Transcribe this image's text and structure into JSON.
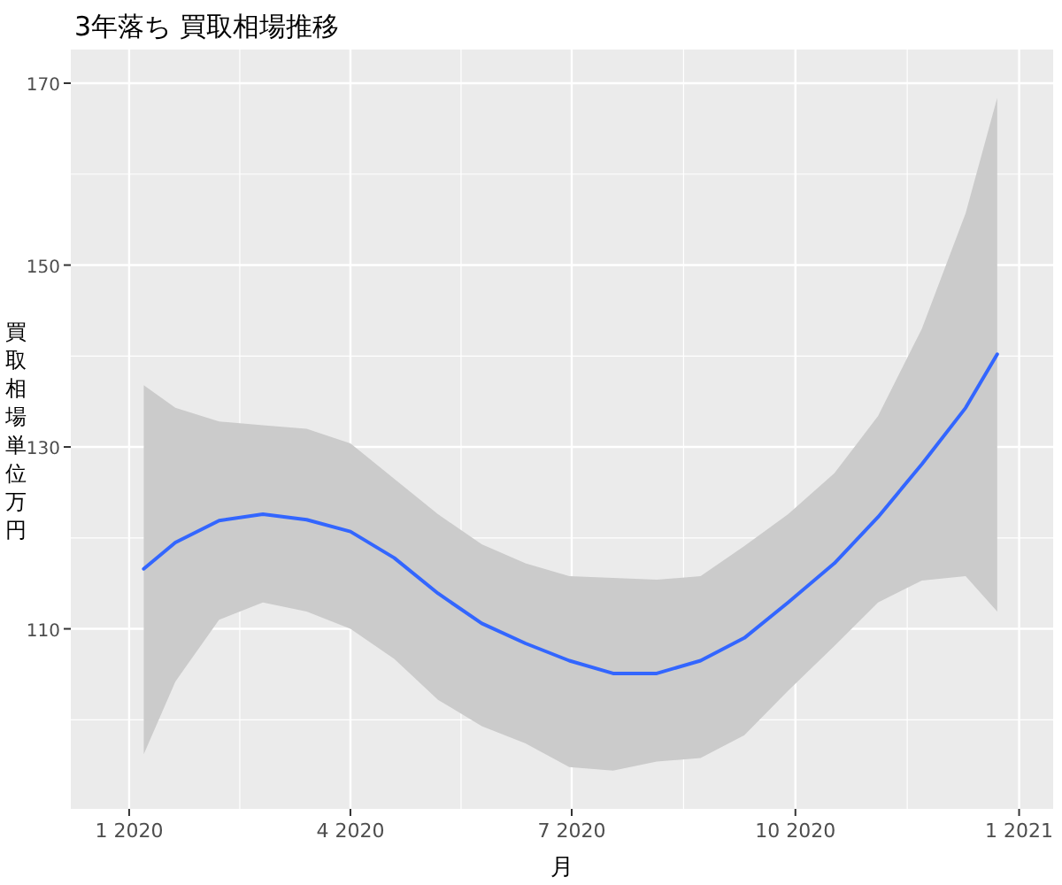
{
  "chart_data": {
    "type": "line",
    "title": "3年落ち 買取相場推移",
    "xlabel": "月",
    "ylabel": "買取相場単位万円",
    "xlim": [
      "2019-12-08",
      "2021-01-15"
    ],
    "ylim": [
      90.2,
      173.7
    ],
    "xticks": [
      {
        "value": "2020-01-01",
        "label": "1 2020"
      },
      {
        "value": "2020-04-01",
        "label": "4 2020"
      },
      {
        "value": "2020-07-01",
        "label": "7 2020"
      },
      {
        "value": "2020-10-01",
        "label": "10 2020"
      },
      {
        "value": "2021-01-01",
        "label": "1 2021"
      }
    ],
    "yticks": [
      110,
      130,
      150,
      170
    ],
    "grid": true,
    "x": [
      "2020-01-07",
      "2020-01-20",
      "2020-02-07",
      "2020-02-25",
      "2020-03-14",
      "2020-04-01",
      "2020-04-19",
      "2020-05-07",
      "2020-05-25",
      "2020-06-12",
      "2020-06-30",
      "2020-07-18",
      "2020-08-05",
      "2020-08-23",
      "2020-09-10",
      "2020-09-28",
      "2020-10-17",
      "2020-11-04",
      "2020-11-22",
      "2020-12-10",
      "2020-12-23"
    ],
    "series": [
      {
        "color": "#3366ff",
        "values": [
          116.6,
          119.5,
          121.9,
          122.6,
          122,
          120.7,
          117.8,
          113.9,
          110.6,
          108.4,
          106.5,
          105.1,
          105.1,
          106.5,
          109,
          112.9,
          117.2,
          122.3,
          128.1,
          134.3,
          140.2
        ],
        "lower": [
          96.2,
          104.2,
          111,
          112.9,
          111.9,
          110,
          106.7,
          102.2,
          99.3,
          97.4,
          94.8,
          94.4,
          95.4,
          95.8,
          98.3,
          103.2,
          108.1,
          112.9,
          115.3,
          115.8,
          111.9
        ],
        "upper": [
          136.8,
          134.3,
          132.8,
          132.4,
          132,
          130.4,
          126.5,
          122.6,
          119.3,
          117.2,
          115.8,
          115.6,
          115.4,
          115.8,
          119.1,
          122.6,
          127.1,
          133.4,
          143,
          155.7,
          168.4
        ]
      }
    ]
  }
}
